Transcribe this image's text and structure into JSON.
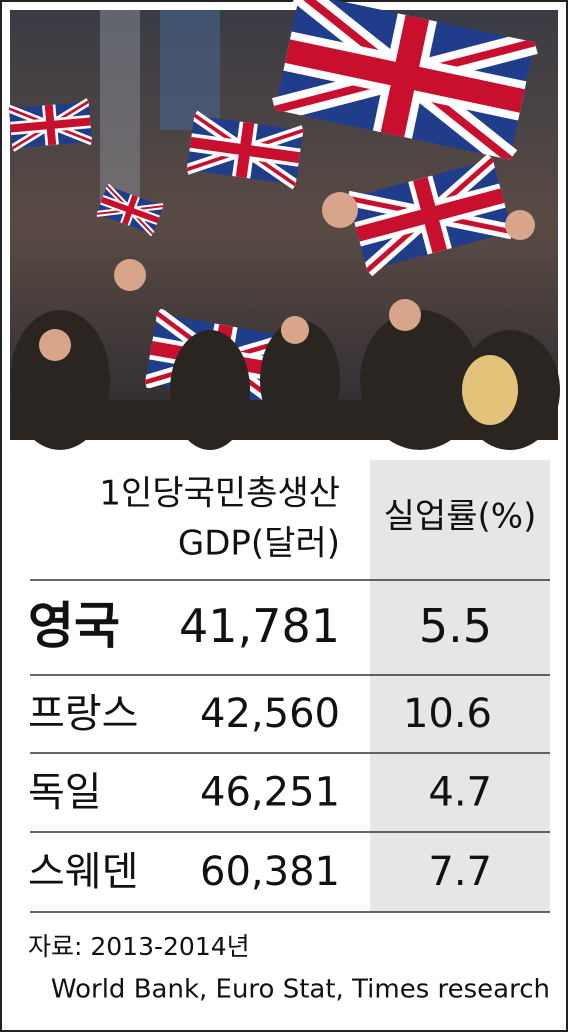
{
  "table": {
    "header": {
      "gdp": [
        "1인당국민총생산",
        "GDP(달러)"
      ],
      "unemployment": "실업률(%)"
    },
    "rows": [
      [
        "영국",
        "41,781",
        "5.5"
      ],
      [
        "프랑스",
        "42,560",
        "10.6"
      ],
      [
        "독일",
        "46,251",
        "4.7"
      ],
      [
        "스웨덴",
        "60,381",
        "7.7"
      ]
    ]
  },
  "source": [
    "자료: 2013-2014년",
    "World Bank, Euro Stat, Times research"
  ]
}
